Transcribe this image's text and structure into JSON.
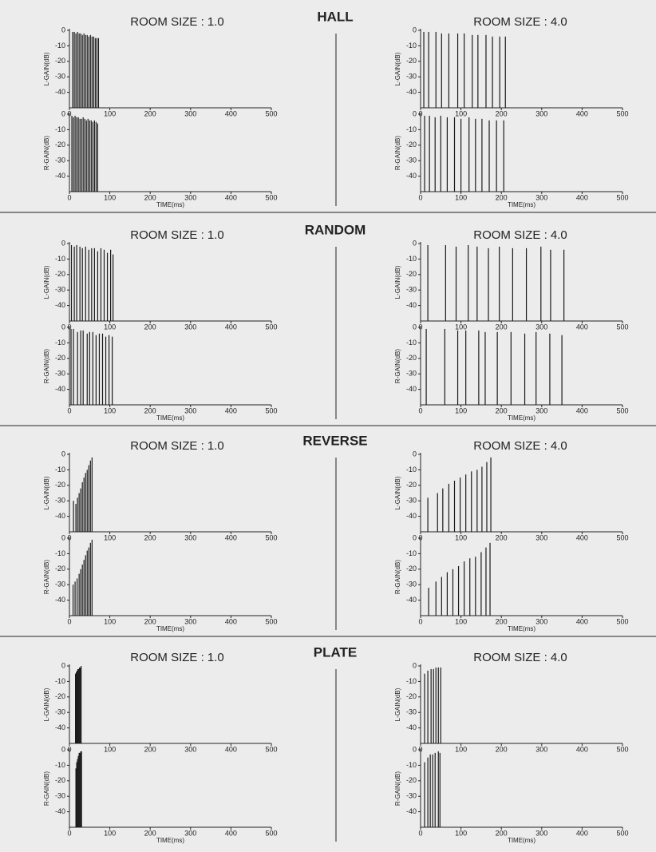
{
  "sections": [
    {
      "title": "HALL",
      "rooms": [
        "ROOM SIZE : 1.0",
        "ROOM SIZE : 4.0"
      ]
    },
    {
      "title": "RANDOM",
      "rooms": [
        "ROOM SIZE : 1.0",
        "ROOM SIZE : 4.0"
      ]
    },
    {
      "title": "REVERSE",
      "rooms": [
        "ROOM SIZE : 1.0",
        "ROOM SIZE : 4.0"
      ]
    },
    {
      "title": "PLATE",
      "rooms": [
        "ROOM SIZE : 1.0",
        "ROOM SIZE : 4.0"
      ]
    }
  ],
  "chart_data": [
    {
      "type": "stem",
      "ylabel": "L-GAIN(dB)",
      "x": [
        8,
        12,
        16,
        20,
        24,
        28,
        32,
        36,
        40,
        44,
        48,
        52,
        56,
        60,
        64,
        68,
        72
      ],
      "values": [
        -1,
        -1,
        -2,
        -1,
        -2,
        -2,
        -3,
        -2,
        -3,
        -3,
        -4,
        -3,
        -4,
        -4,
        -5,
        -5,
        -5
      ],
      "xlim": [
        0,
        500
      ],
      "xticks": [
        0,
        100,
        200,
        300,
        400,
        500
      ],
      "ylim": [
        -50,
        0
      ],
      "yticks": [
        0,
        -10,
        -20,
        -30,
        -40
      ]
    },
    {
      "type": "stem",
      "ylabel": "R-GAIN(dB)",
      "xlabel": "TIME(ms)",
      "x": [
        6,
        10,
        14,
        18,
        22,
        26,
        30,
        34,
        38,
        42,
        46,
        50,
        54,
        58,
        62,
        66,
        70
      ],
      "values": [
        -1,
        -2,
        -1,
        -2,
        -2,
        -3,
        -3,
        -2,
        -3,
        -4,
        -3,
        -4,
        -4,
        -5,
        -4,
        -5,
        -6
      ],
      "xlim": [
        0,
        500
      ],
      "xticks": [
        0,
        100,
        200,
        300,
        400,
        500
      ],
      "ylim": [
        -50,
        0
      ],
      "yticks": [
        0,
        -10,
        -20,
        -30,
        -40
      ]
    },
    {
      "type": "stem",
      "ylabel": "L-GAIN(dB)",
      "x": [
        8,
        20,
        38,
        52,
        70,
        92,
        108,
        128,
        142,
        162,
        178,
        196,
        210
      ],
      "values": [
        -1,
        -1,
        -1,
        -2,
        -2,
        -2,
        -2,
        -3,
        -3,
        -3,
        -4,
        -4,
        -4
      ],
      "xlim": [
        0,
        500
      ],
      "xticks": [
        0,
        100,
        200,
        300,
        400,
        500
      ],
      "ylim": [
        -50,
        0
      ],
      "yticks": [
        0,
        -10,
        -20,
        -30,
        -40
      ]
    },
    {
      "type": "stem",
      "ylabel": "R-GAIN(dB)",
      "xlabel": "TIME(ms)",
      "x": [
        10,
        22,
        36,
        50,
        66,
        84,
        100,
        120,
        136,
        152,
        170,
        188,
        206
      ],
      "values": [
        -1,
        -1,
        -2,
        -1,
        -2,
        -2,
        -3,
        -2,
        -3,
        -3,
        -4,
        -4,
        -4
      ],
      "xlim": [
        0,
        500
      ],
      "xticks": [
        0,
        100,
        200,
        300,
        400,
        500
      ],
      "ylim": [
        -50,
        0
      ],
      "yticks": [
        0,
        -10,
        -20,
        -30,
        -40
      ]
    },
    {
      "type": "stem",
      "ylabel": "L-GAIN(dB)",
      "x": [
        5,
        12,
        18,
        26,
        32,
        40,
        48,
        55,
        62,
        70,
        78,
        86,
        94,
        102,
        108
      ],
      "values": [
        -1,
        -2,
        -1,
        -2,
        -3,
        -2,
        -4,
        -3,
        -3,
        -5,
        -3,
        -4,
        -6,
        -4,
        -7
      ],
      "xlim": [
        0,
        500
      ],
      "xticks": [
        0,
        100,
        200,
        300,
        400,
        500
      ],
      "ylim": [
        -50,
        0
      ],
      "yticks": [
        0,
        -10,
        -20,
        -30,
        -40
      ]
    },
    {
      "type": "stem",
      "ylabel": "R-GAIN(dB)",
      "xlabel": "TIME(ms)",
      "x": [
        4,
        10,
        20,
        28,
        34,
        44,
        50,
        58,
        66,
        74,
        82,
        90,
        98,
        106
      ],
      "values": [
        -1,
        -1,
        -3,
        -2,
        -2,
        -4,
        -3,
        -3,
        -5,
        -4,
        -4,
        -6,
        -5,
        -6
      ],
      "xlim": [
        0,
        500
      ],
      "xticks": [
        0,
        100,
        200,
        300,
        400,
        500
      ],
      "ylim": [
        -50,
        0
      ],
      "yticks": [
        0,
        -10,
        -20,
        -30,
        -40
      ]
    },
    {
      "type": "stem",
      "ylabel": "L-GAIN(dB)",
      "x": [
        18,
        62,
        88,
        118,
        140,
        168,
        195,
        228,
        262,
        298,
        322,
        355
      ],
      "values": [
        -1,
        -1,
        -2,
        -1,
        -2,
        -3,
        -2,
        -3,
        -3,
        -2,
        -4,
        -4
      ],
      "xlim": [
        0,
        500
      ],
      "xticks": [
        0,
        100,
        200,
        300,
        400,
        500
      ],
      "ylim": [
        -50,
        0
      ],
      "yticks": [
        0,
        -10,
        -20,
        -30,
        -40
      ]
    },
    {
      "type": "stem",
      "ylabel": "R-GAIN(dB)",
      "xlabel": "TIME(ms)",
      "x": [
        14,
        60,
        92,
        112,
        144,
        160,
        190,
        224,
        258,
        286,
        320,
        350
      ],
      "values": [
        -1,
        -1,
        -2,
        -2,
        -2,
        -3,
        -3,
        -3,
        -4,
        -3,
        -4,
        -5
      ],
      "xlim": [
        0,
        500
      ],
      "xticks": [
        0,
        100,
        200,
        300,
        400,
        500
      ],
      "ylim": [
        -50,
        0
      ],
      "yticks": [
        0,
        -10,
        -20,
        -30,
        -40
      ]
    },
    {
      "type": "stem",
      "ylabel": "L-GAIN(dB)",
      "x": [
        10,
        16,
        20,
        24,
        28,
        32,
        36,
        40,
        44,
        48,
        52,
        56
      ],
      "values": [
        -30,
        -32,
        -28,
        -25,
        -22,
        -18,
        -15,
        -12,
        -10,
        -7,
        -4,
        -2
      ],
      "xlim": [
        0,
        500
      ],
      "xticks": [
        0,
        100,
        200,
        300,
        400,
        500
      ],
      "ylim": [
        -50,
        0
      ],
      "yticks": [
        0,
        -10,
        -20,
        -30,
        -40
      ]
    },
    {
      "type": "stem",
      "ylabel": "R-GAIN(dB)",
      "xlabel": "TIME(ms)",
      "x": [
        9,
        14,
        19,
        24,
        28,
        32,
        36,
        40,
        44,
        48,
        52,
        56
      ],
      "values": [
        -30,
        -28,
        -26,
        -23,
        -20,
        -17,
        -14,
        -11,
        -8,
        -6,
        -3,
        -1
      ],
      "xlim": [
        0,
        500
      ],
      "xticks": [
        0,
        100,
        200,
        300,
        400,
        500
      ],
      "ylim": [
        -50,
        0
      ],
      "yticks": [
        0,
        -10,
        -20,
        -30,
        -40
      ]
    },
    {
      "type": "stem",
      "ylabel": "L-GAIN(dB)",
      "x": [
        18,
        42,
        55,
        70,
        84,
        98,
        112,
        126,
        140,
        152,
        164,
        174
      ],
      "values": [
        -28,
        -25,
        -22,
        -19,
        -17,
        -15,
        -13,
        -11,
        -10,
        -8,
        -5,
        -2
      ],
      "xlim": [
        0,
        500
      ],
      "xticks": [
        0,
        100,
        200,
        300,
        400,
        500
      ],
      "ylim": [
        -50,
        0
      ],
      "yticks": [
        0,
        -10,
        -20,
        -30,
        -40
      ]
    },
    {
      "type": "stem",
      "ylabel": "R-GAIN(dB)",
      "xlabel": "TIME(ms)",
      "x": [
        20,
        38,
        52,
        66,
        80,
        94,
        108,
        122,
        136,
        150,
        162,
        172
      ],
      "values": [
        -32,
        -28,
        -25,
        -22,
        -20,
        -18,
        -15,
        -13,
        -12,
        -9,
        -6,
        -3
      ],
      "xlim": [
        0,
        500
      ],
      "xticks": [
        0,
        100,
        200,
        300,
        400,
        500
      ],
      "ylim": [
        -50,
        0
      ],
      "yticks": [
        0,
        -10,
        -20,
        -30,
        -40
      ]
    },
    {
      "type": "stem",
      "ylabel": "L-GAIN(dB)",
      "x": [
        15,
        17,
        19,
        21,
        23,
        25,
        27,
        29
      ],
      "values": [
        -5,
        -4,
        -3,
        -2,
        -2,
        -1,
        -1,
        0
      ],
      "xlim": [
        0,
        500
      ],
      "xticks": [
        0,
        100,
        200,
        300,
        400,
        500
      ],
      "ylim": [
        -50,
        0
      ],
      "yticks": [
        0,
        -10,
        -20,
        -30,
        -40
      ]
    },
    {
      "type": "stem",
      "ylabel": "R-GAIN(dB)",
      "xlabel": "TIME(ms)",
      "x": [
        16,
        18,
        20,
        22,
        24,
        26,
        28,
        30
      ],
      "values": [
        -12,
        -8,
        -6,
        -4,
        -2,
        -2,
        -1,
        -1
      ],
      "xlim": [
        0,
        500
      ],
      "xticks": [
        0,
        100,
        200,
        300,
        400,
        500
      ],
      "ylim": [
        -50,
        0
      ],
      "yticks": [
        0,
        -10,
        -20,
        -30,
        -40
      ]
    },
    {
      "type": "stem",
      "ylabel": "L-GAIN(dB)",
      "x": [
        10,
        18,
        26,
        32,
        38,
        44,
        50
      ],
      "values": [
        -5,
        -3,
        -2,
        -2,
        -1,
        -1,
        -1
      ],
      "xlim": [
        0,
        500
      ],
      "xticks": [
        0,
        100,
        200,
        300,
        400,
        500
      ],
      "ylim": [
        -50,
        0
      ],
      "yticks": [
        0,
        -10,
        -20,
        -30,
        -40
      ]
    },
    {
      "type": "stem",
      "ylabel": "R-GAIN(dB)",
      "xlabel": "TIME(ms)",
      "x": [
        10,
        18,
        24,
        30,
        36,
        44,
        48
      ],
      "values": [
        -8,
        -5,
        -3,
        -3,
        -2,
        -1,
        -2
      ],
      "xlim": [
        0,
        500
      ],
      "xticks": [
        0,
        100,
        200,
        300,
        400,
        500
      ],
      "ylim": [
        -50,
        0
      ],
      "yticks": [
        0,
        -10,
        -20,
        -30,
        -40
      ]
    }
  ]
}
